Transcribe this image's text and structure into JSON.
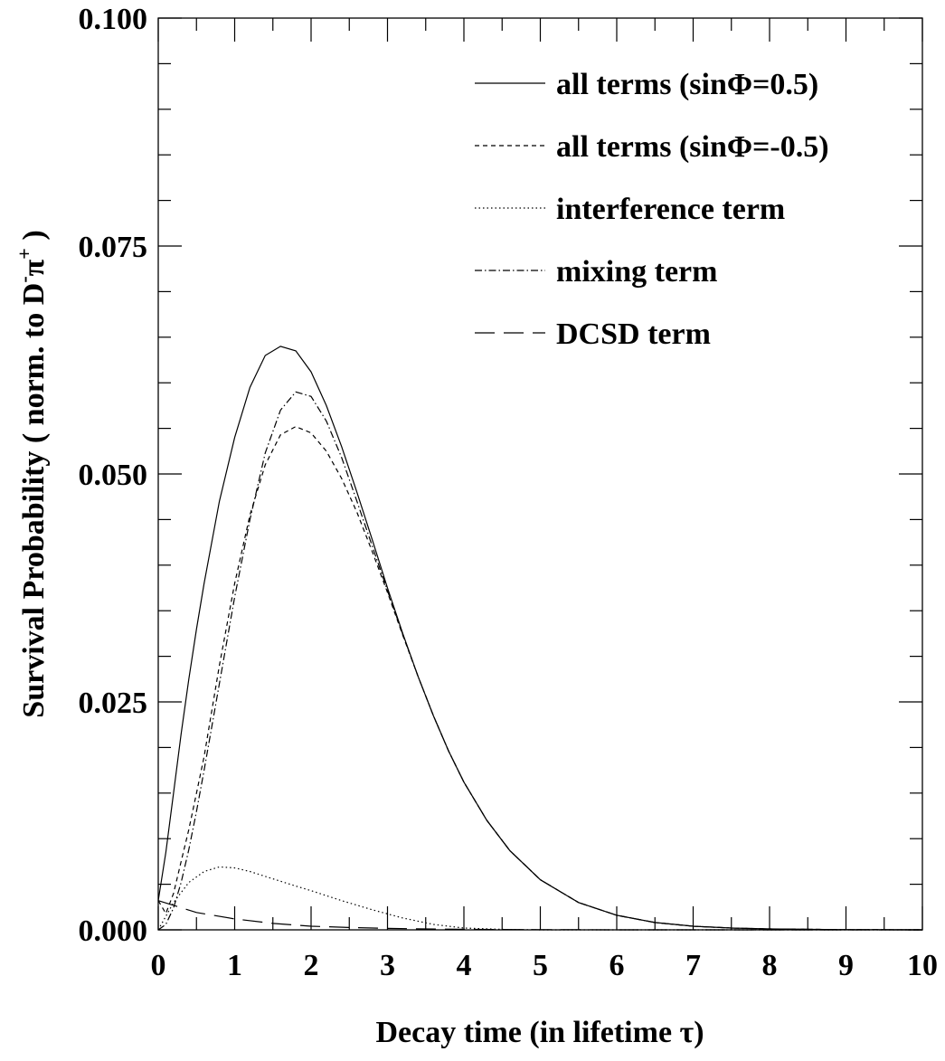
{
  "chart_data": {
    "type": "line",
    "xlabel": "Decay time (in lifetime τ)",
    "ylabel": "Survival Probability ( norm. to D",
    "ylabel_particle": "π",
    "ylabel_sup1": "-",
    "ylabel_sup2": "+",
    "ylabel_close": " )",
    "xlim": [
      0,
      10
    ],
    "ylim": [
      0,
      0.1
    ],
    "x_ticks": [
      0,
      1,
      2,
      3,
      4,
      5,
      6,
      7,
      8,
      9,
      10
    ],
    "x_tick_labels": [
      "0",
      "1",
      "2",
      "3",
      "4",
      "5",
      "6",
      "7",
      "8",
      "9",
      "10"
    ],
    "y_ticks": [
      0,
      0.025,
      0.05,
      0.075,
      0.1
    ],
    "y_tick_labels": [
      "0.000",
      "0.025",
      "0.050",
      "0.075",
      "0.100"
    ],
    "legend_position": "top-right",
    "series": [
      {
        "name": "all terms (sinΦ=0.5)",
        "dash": "solid",
        "x": [
          0,
          0.1,
          0.2,
          0.3,
          0.4,
          0.5,
          0.6,
          0.8,
          1.0,
          1.2,
          1.4,
          1.6,
          1.8,
          2.0,
          2.2,
          2.4,
          2.6,
          2.8,
          3.0,
          3.2,
          3.4,
          3.6,
          3.8,
          4.0,
          4.3,
          4.6,
          5.0,
          5.5,
          6.0,
          6.5,
          7.0,
          7.5,
          8.0,
          9.0,
          10.0
        ],
        "y": [
          0.0032,
          0.0085,
          0.015,
          0.0215,
          0.0275,
          0.033,
          0.038,
          0.047,
          0.054,
          0.0595,
          0.063,
          0.064,
          0.0635,
          0.0612,
          0.0575,
          0.053,
          0.048,
          0.0428,
          0.0375,
          0.0325,
          0.0278,
          0.0235,
          0.0196,
          0.0162,
          0.012,
          0.0087,
          0.0055,
          0.003,
          0.0016,
          0.0008,
          0.0004,
          0.0002,
          0.0001,
          2e-05,
          0.0
        ]
      },
      {
        "name": "all terms (sinΦ=-0.5)",
        "dash": "dashed",
        "x": [
          0,
          0.1,
          0.2,
          0.3,
          0.4,
          0.5,
          0.6,
          0.8,
          1.0,
          1.2,
          1.4,
          1.6,
          1.8,
          2.0,
          2.2,
          2.4,
          2.6,
          2.8,
          3.0,
          3.2,
          3.4,
          3.6,
          3.8,
          4.0,
          4.3,
          4.6,
          5.0,
          5.5,
          6.0,
          6.5,
          7.0,
          7.5,
          8.0,
          9.0,
          10.0
        ],
        "y": [
          0.0032,
          0.0018,
          0.004,
          0.0075,
          0.011,
          0.015,
          0.019,
          0.029,
          0.038,
          0.0455,
          0.051,
          0.0543,
          0.0552,
          0.0545,
          0.0525,
          0.0495,
          0.0458,
          0.0415,
          0.037,
          0.0323,
          0.0278,
          0.0235,
          0.0196,
          0.0162,
          0.012,
          0.0087,
          0.0055,
          0.003,
          0.0016,
          0.0008,
          0.0004,
          0.0002,
          0.0001,
          2e-05,
          0.0
        ]
      },
      {
        "name": "interference term",
        "dash": "dotted",
        "x": [
          0,
          0.2,
          0.4,
          0.6,
          0.8,
          1.0,
          1.2,
          1.5,
          1.8,
          2.0,
          2.4,
          2.8,
          3.2,
          3.6,
          4.0,
          4.5,
          5.0,
          6.0,
          8.0,
          10.0
        ],
        "y": [
          0.0,
          0.003,
          0.0052,
          0.0064,
          0.0069,
          0.0068,
          0.0064,
          0.0056,
          0.0048,
          0.0043,
          0.0032,
          0.0022,
          0.0013,
          0.0006,
          0.0002,
          5e-05,
          0.0,
          0.0,
          0.0,
          0.0
        ]
      },
      {
        "name": "mixing term",
        "dash": "dashdot",
        "x": [
          0,
          0.1,
          0.2,
          0.3,
          0.4,
          0.5,
          0.6,
          0.8,
          1.0,
          1.2,
          1.4,
          1.6,
          1.8,
          2.0,
          2.2,
          2.4,
          2.6,
          2.8,
          3.0,
          3.2,
          3.4,
          3.6,
          3.8,
          4.0,
          4.3,
          4.6,
          5.0,
          5.5,
          6.0,
          6.5,
          7.0,
          7.5,
          8.0,
          9.0,
          10.0
        ],
        "y": [
          0.0,
          0.0006,
          0.0024,
          0.0052,
          0.0088,
          0.013,
          0.0175,
          0.027,
          0.0365,
          0.045,
          0.0523,
          0.057,
          0.059,
          0.0585,
          0.0558,
          0.0518,
          0.047,
          0.0421,
          0.0372,
          0.0324,
          0.0278,
          0.0235,
          0.0196,
          0.0162,
          0.012,
          0.0087,
          0.0055,
          0.003,
          0.0016,
          0.0008,
          0.0004,
          0.0002,
          0.0001,
          2e-05,
          0.0
        ]
      },
      {
        "name": "DCSD term",
        "dash": "longdash",
        "x": [
          0,
          0.5,
          1.0,
          1.5,
          2.0,
          2.5,
          3.0,
          3.5,
          4.0,
          5.0,
          6.0,
          8.0,
          10.0
        ],
        "y": [
          0.0032,
          0.0019,
          0.0012,
          0.0007,
          0.0004,
          0.00026,
          0.00016,
          0.0001,
          6e-05,
          2e-05,
          0.0,
          0.0,
          0.0
        ]
      }
    ]
  }
}
